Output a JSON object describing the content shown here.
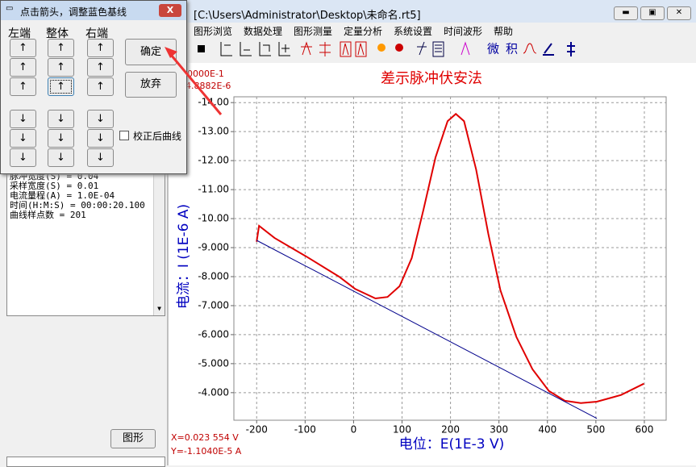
{
  "dialog": {
    "title": "点击箭头，调整蓝色基线",
    "close": "X",
    "columns": [
      "左端",
      "整体",
      "右端"
    ],
    "up": "↑",
    "down": "↓",
    "ok": "确定",
    "cancel": "放弃",
    "checkbox": "校正后曲线"
  },
  "window": {
    "title": "[C:\\Users\\Administrator\\Desktop\\未命名.rt5]",
    "menu": [
      "图形浏览",
      "数据处理",
      "图形测量",
      "定量分析",
      "系统设置",
      "时间波形",
      "帮助"
    ],
    "toolbar_text": [
      "微",
      "积"
    ]
  },
  "info": {
    "lines": [
      "脉冲宽度(S) = 0.04",
      "采样宽度(S) = 0.01",
      "电流量程(A) = 1.0E-04",
      "时间(H:M:S) = 00:00:20.100",
      "曲线样点数 = 201"
    ],
    "button": "图形"
  },
  "readout": {
    "top": [
      "0000E-1",
      "4.8882E-6"
    ],
    "bottom": [
      "X=0.023 554 V",
      "Y=-1.1040E-5 A"
    ]
  },
  "chart_data": {
    "type": "line",
    "title": "差示脉冲伏安法",
    "y_label": "电流：I (1E-6 A)",
    "x_label": "电位：E(1E-3 V)",
    "series": [
      {
        "color": "#e00000",
        "x": [
          -200,
          -195,
          -163,
          -97,
          -30,
          3,
          45,
          70,
          95,
          120,
          144,
          169,
          194,
          211,
          228,
          253,
          278,
          303,
          336,
          369,
          403,
          436,
          469,
          502,
          552,
          599
        ],
        "values": [
          -9.2,
          -9.75,
          -9.33,
          -8.69,
          -8.0,
          -7.58,
          -7.25,
          -7.3,
          -7.67,
          -8.64,
          -10.3,
          -12.11,
          -13.36,
          -13.61,
          -13.36,
          -11.69,
          -9.47,
          -7.53,
          -5.92,
          -4.81,
          -4.06,
          -3.72,
          -3.64,
          -3.69,
          -3.92,
          -4.31
        ]
      },
      {
        "color": "#00008b",
        "x": [
          -200,
          502
        ],
        "values": [
          -9.25,
          -3.11
        ]
      }
    ],
    "xlim": [
      -247,
      645
    ],
    "xticks": [
      -200,
      -100,
      0,
      100,
      200,
      300,
      400,
      500,
      600
    ],
    "ylim": [
      -3.05,
      -14.2
    ],
    "yticks": [
      {
        "value": -14,
        "label": "-14.00"
      },
      {
        "value": -13,
        "label": "-13.00"
      },
      {
        "value": -12,
        "label": "-12.00"
      },
      {
        "value": -11,
        "label": "-11.00"
      },
      {
        "value": -10,
        "label": "-10.00"
      },
      {
        "value": -9,
        "label": "-9.000"
      },
      {
        "value": -8,
        "label": "-8.000"
      },
      {
        "value": -7,
        "label": "-7.000"
      },
      {
        "value": -6,
        "label": "-6.000"
      },
      {
        "value": -5,
        "label": "-5.000"
      },
      {
        "value": -4,
        "label": "-4.000"
      }
    ],
    "grid": true
  }
}
